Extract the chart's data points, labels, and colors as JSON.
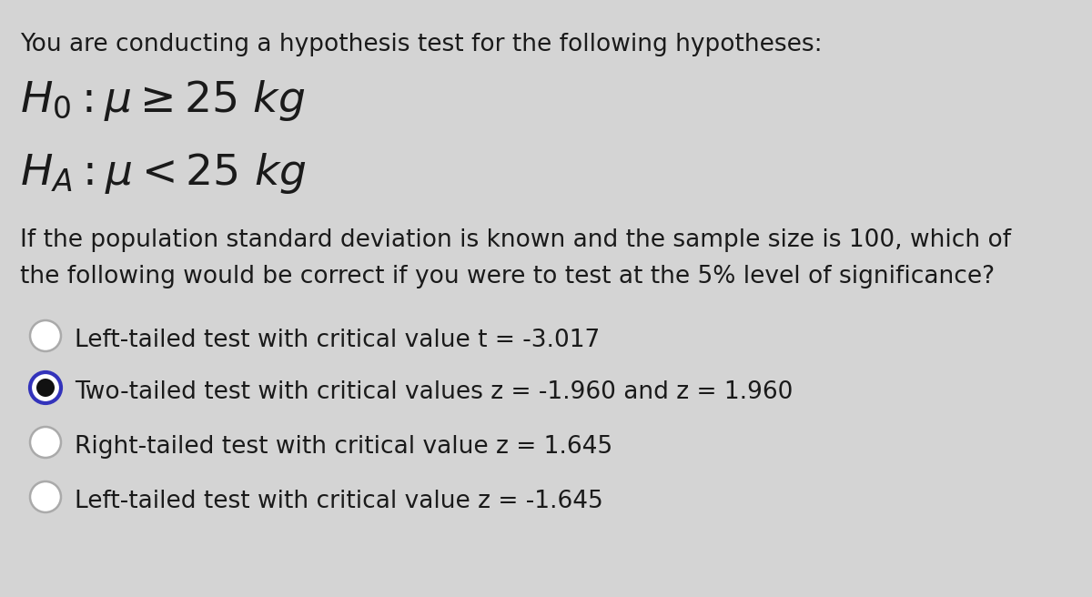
{
  "background_color": "#d4d4d4",
  "text_color": "#1a1a1a",
  "title_line": "You are conducting a hypothesis test for the following hypotheses:",
  "body_line1": "If the population standard deviation is known and the sample size is 100, which of",
  "body_line2": "the following would be correct if you were to test at the 5% level of significance?",
  "options": [
    "Left-tailed test with critical value t = -3.017",
    "Two-tailed test with critical values z = -1.960 and z = 1.960",
    "Right-tailed test with critical value z = 1.645",
    "Left-tailed test with critical value z = -1.645"
  ],
  "selected_option": 1,
  "title_fontsize": 19,
  "hypothesis_fontsize": 34,
  "body_fontsize": 19,
  "option_fontsize": 19,
  "radio_border_color": "#3333bb",
  "radio_fill_color": "#111111",
  "radio_empty_color": "#aaaaaa"
}
